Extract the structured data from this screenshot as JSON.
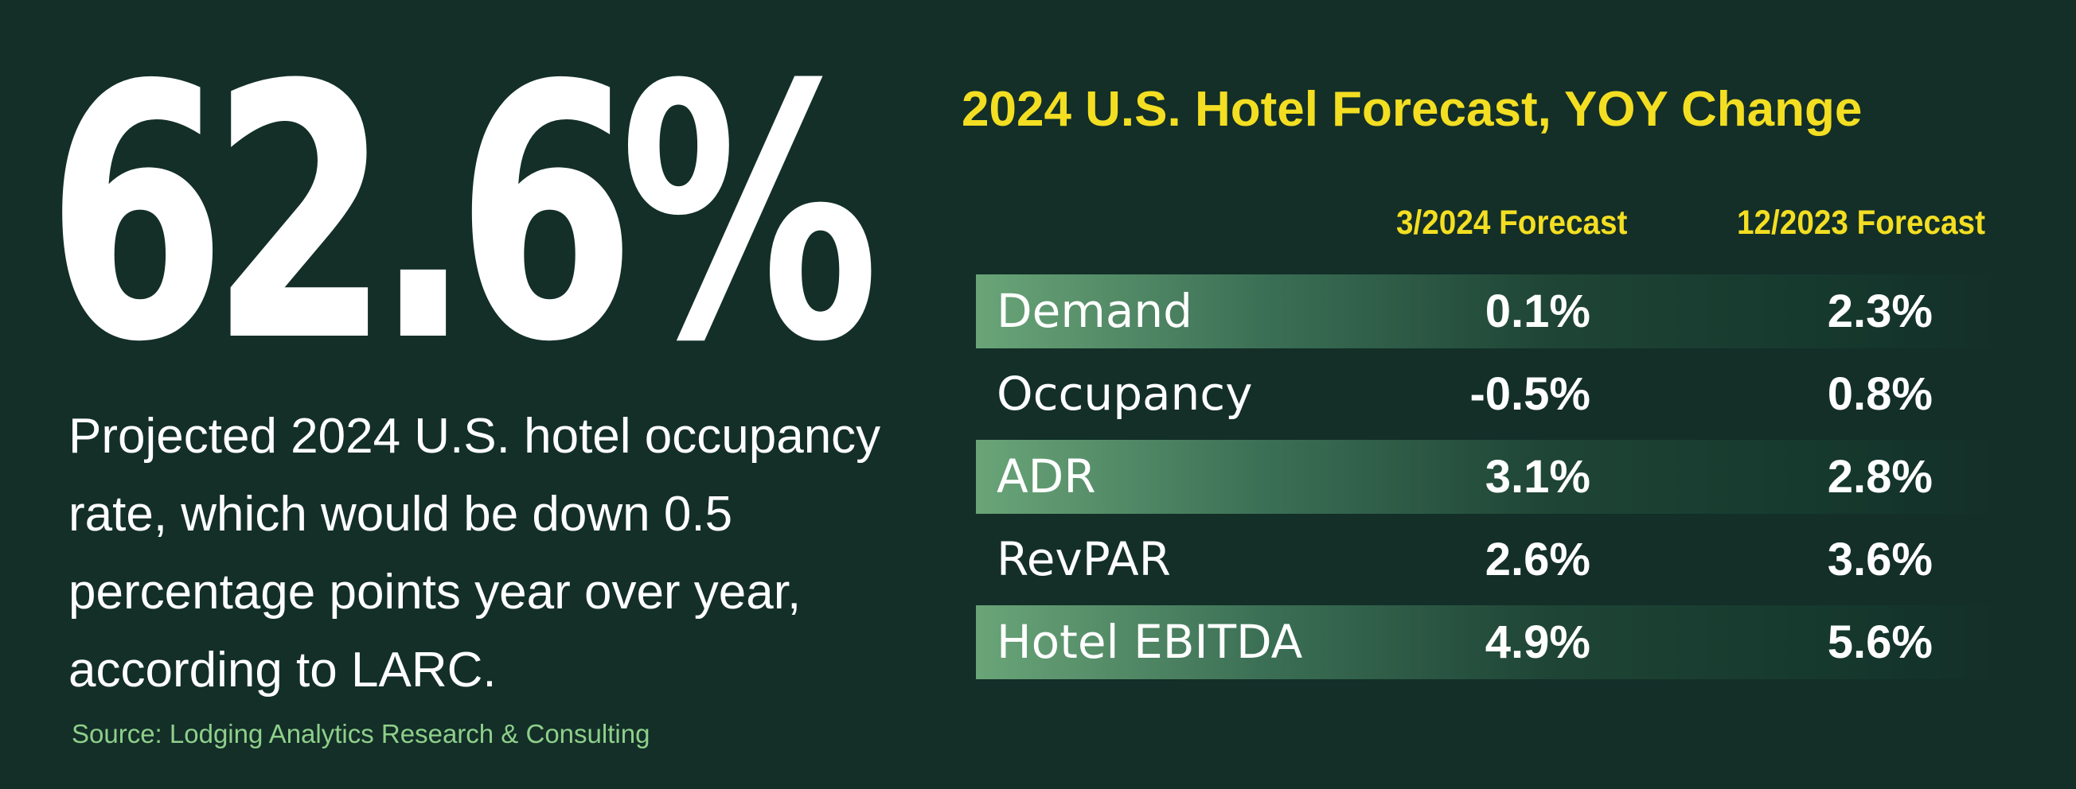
{
  "headline": {
    "big_value": "62.6%",
    "description": "Projected 2024 U.S. hotel occupancy rate, which would be down 0.5 percentage points year over year, according to LARC.",
    "source": "Source: Lodging Analytics Research & Consulting"
  },
  "colors": {
    "background": "#132f28",
    "accent_yellow": "#f3de22",
    "source_green": "#8fcf8a",
    "row_shade": "#6aa578"
  },
  "chart_data": {
    "type": "table",
    "title": "2024 U.S. Hotel Forecast, YOY Change",
    "columns": [
      "3/2024 Forecast",
      "12/2023 Forecast"
    ],
    "rows": [
      {
        "metric": "Demand",
        "values": [
          "0.1%",
          "2.3%"
        ],
        "shaded": true
      },
      {
        "metric": "Occupancy",
        "values": [
          "-0.5%",
          "0.8%"
        ],
        "shaded": false
      },
      {
        "metric": "ADR",
        "values": [
          "3.1%",
          "2.8%"
        ],
        "shaded": true
      },
      {
        "metric": "RevPAR",
        "values": [
          "2.6%",
          "3.6%"
        ],
        "shaded": false
      },
      {
        "metric": "Hotel EBITDA",
        "values": [
          "4.9%",
          "5.6%"
        ],
        "shaded": true
      }
    ]
  }
}
